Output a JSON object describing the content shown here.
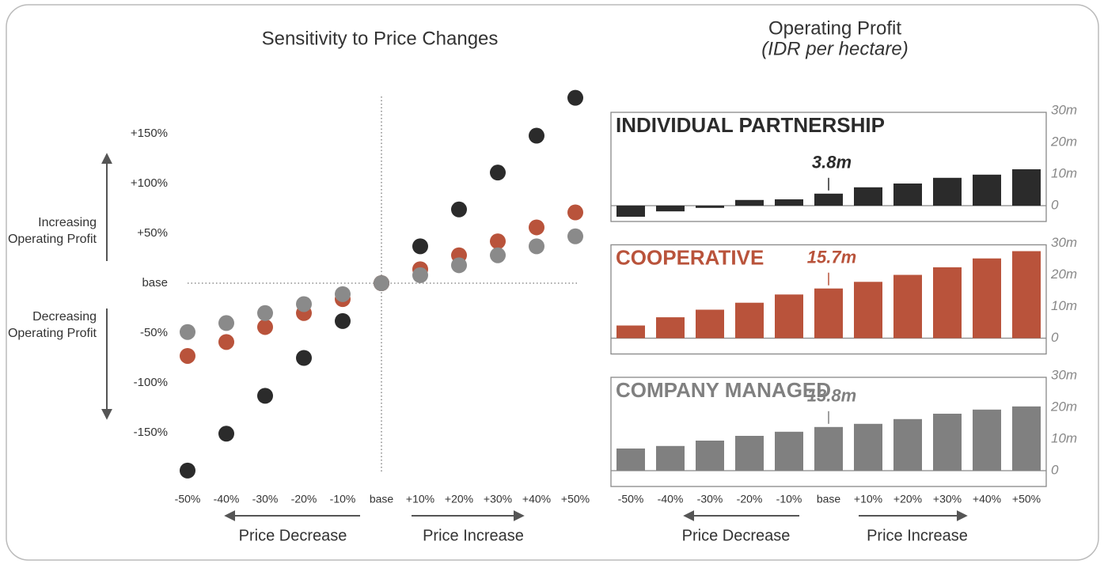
{
  "chart_data": [
    {
      "type": "scatter",
      "title": "Sensitivity to Price Changes",
      "categories": [
        "-50%",
        "-40%",
        "-30%",
        "-20%",
        "-10%",
        "base",
        "+10%",
        "+20%",
        "+30%",
        "+40%",
        "+50%"
      ],
      "series": [
        {
          "color": "#2b2b2b",
          "values": [
            -188,
            -151,
            -113,
            -75,
            -38,
            0,
            37,
            74,
            111,
            148,
            186
          ]
        },
        {
          "color": "#b9533b",
          "values": [
            -73,
            -59,
            -44,
            -30,
            -16,
            0,
            14,
            28,
            42,
            56,
            71
          ]
        },
        {
          "color": "#8a8a8a",
          "values": [
            -49,
            -40,
            -30,
            -21,
            -11,
            0,
            8,
            18,
            28,
            37,
            47
          ]
        }
      ],
      "ylim": [
        -200,
        200
      ],
      "yticks": [
        {
          "value": 150,
          "label": "+150%"
        },
        {
          "value": 100,
          "label": "+100%"
        },
        {
          "value": 50,
          "label": "+50%"
        },
        {
          "value": 0,
          "label": "base"
        },
        {
          "value": -50,
          "label": "-50%"
        },
        {
          "value": -100,
          "label": "-100%"
        },
        {
          "value": -150,
          "label": "-150%"
        }
      ],
      "y_annotations": [
        "Increasing Operating Profit",
        "Decreasing Operating Profit"
      ],
      "x_annotations": [
        "Price Decrease",
        "Price Increase"
      ]
    },
    {
      "type": "bar",
      "title": "Operating Profit",
      "subtitle": "(IDR per hectare)",
      "categories": [
        "-50%",
        "-40%",
        "-30%",
        "-20%",
        "-10%",
        "base",
        "+10%",
        "+20%",
        "+30%",
        "+40%",
        "+50%"
      ],
      "series": [
        {
          "name": "INDIVIDUAL PARTNERSHIP",
          "color": "#2b2b2b",
          "values": [
            -3.5,
            -1.8,
            -0.7,
            1.8,
            2,
            3.8,
            5.8,
            7,
            8.8,
            9.8,
            11.5
          ],
          "value_labels": [
            null,
            null,
            null,
            null,
            null,
            "3.8m",
            null,
            null,
            null,
            null,
            null
          ]
        },
        {
          "name": "COOPERATIVE",
          "color": "#b9533b",
          "values": [
            4,
            6.6,
            9,
            11.2,
            13.8,
            15.7,
            17.8,
            20,
            22.4,
            25.2,
            27.5
          ],
          "value_labels": [
            null,
            null,
            null,
            null,
            null,
            "15.7m",
            null,
            null,
            null,
            null,
            null
          ]
        },
        {
          "name": "COMPANY MANAGED",
          "color": "#808080",
          "values": [
            7,
            7.8,
            9.5,
            11,
            12.3,
            13.8,
            14.8,
            16.3,
            18,
            19.3,
            20.3
          ],
          "value_labels": [
            null,
            null,
            null,
            null,
            null,
            "13.8m",
            null,
            null,
            null,
            null,
            null
          ]
        }
      ],
      "ylim": [
        -5,
        30
      ],
      "yticks": [
        0,
        {
          "value": 10,
          "label": "10m"
        },
        {
          "value": 20,
          "label": "20m"
        },
        {
          "value": 30,
          "label": "30m"
        }
      ],
      "x_annotations": [
        "Price Decrease",
        "Price Increase"
      ]
    }
  ]
}
